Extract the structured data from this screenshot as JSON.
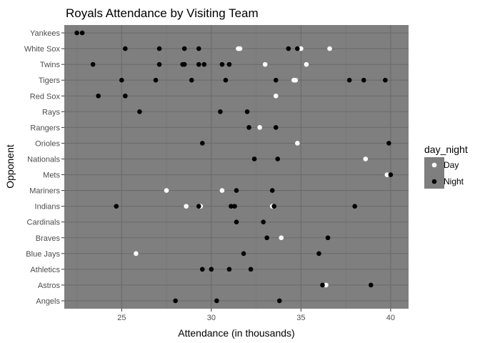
{
  "chart_data": {
    "type": "scatter",
    "title": "Royals Attendance by Visiting Team",
    "xlabel": "Attendance (in thousands)",
    "ylabel": "Opponent",
    "xlim": [
      21.8,
      41
    ],
    "x_ticks": [
      25,
      30,
      35,
      40
    ],
    "categories": [
      "Angels",
      "Astros",
      "Athletics",
      "Blue Jays",
      "Braves",
      "Cardinals",
      "Indians",
      "Mariners",
      "Mets",
      "Nationals",
      "Orioles",
      "Rangers",
      "Rays",
      "Red Sox",
      "Tigers",
      "Twins",
      "White Sox",
      "Yankees"
    ],
    "legend": {
      "title": "day_night",
      "position": "right",
      "entries": [
        {
          "name": "Day",
          "color": "#ffffff"
        },
        {
          "name": "Night",
          "color": "#000000"
        }
      ]
    },
    "series": [
      {
        "name": "Day",
        "points": [
          {
            "x": 36.4,
            "y": "Astros"
          },
          {
            "x": 39.8,
            "y": "Mets"
          },
          {
            "x": 38.6,
            "y": "Nationals"
          },
          {
            "x": 34.8,
            "y": "Orioles"
          },
          {
            "x": 32.7,
            "y": "Rangers"
          },
          {
            "x": 33.6,
            "y": "Red Sox"
          },
          {
            "x": 34.6,
            "y": "Tigers"
          },
          {
            "x": 34.7,
            "y": "Tigers"
          },
          {
            "x": 33.0,
            "y": "Twins"
          },
          {
            "x": 35.3,
            "y": "Twins"
          },
          {
            "x": 31.5,
            "y": "White Sox"
          },
          {
            "x": 31.6,
            "y": "White Sox"
          },
          {
            "x": 35.0,
            "y": "White Sox"
          },
          {
            "x": 36.6,
            "y": "White Sox"
          },
          {
            "x": 25.8,
            "y": "Blue Jays"
          },
          {
            "x": 33.9,
            "y": "Braves"
          },
          {
            "x": 28.6,
            "y": "Indians"
          },
          {
            "x": 29.4,
            "y": "Indians"
          },
          {
            "x": 33.4,
            "y": "Indians"
          },
          {
            "x": 27.5,
            "y": "Mariners"
          },
          {
            "x": 30.6,
            "y": "Mariners"
          }
        ]
      },
      {
        "name": "Night",
        "points": [
          {
            "x": 28.0,
            "y": "Angels"
          },
          {
            "x": 30.3,
            "y": "Angels"
          },
          {
            "x": 33.8,
            "y": "Angels"
          },
          {
            "x": 36.2,
            "y": "Astros"
          },
          {
            "x": 38.9,
            "y": "Astros"
          },
          {
            "x": 29.5,
            "y": "Athletics"
          },
          {
            "x": 30.0,
            "y": "Athletics"
          },
          {
            "x": 31.0,
            "y": "Athletics"
          },
          {
            "x": 32.2,
            "y": "Athletics"
          },
          {
            "x": 31.8,
            "y": "Blue Jays"
          },
          {
            "x": 36.0,
            "y": "Blue Jays"
          },
          {
            "x": 33.1,
            "y": "Braves"
          },
          {
            "x": 36.5,
            "y": "Braves"
          },
          {
            "x": 31.4,
            "y": "Cardinals"
          },
          {
            "x": 32.9,
            "y": "Cardinals"
          },
          {
            "x": 24.7,
            "y": "Indians"
          },
          {
            "x": 29.3,
            "y": "Indians"
          },
          {
            "x": 31.1,
            "y": "Indians"
          },
          {
            "x": 31.3,
            "y": "Indians"
          },
          {
            "x": 33.5,
            "y": "Indians"
          },
          {
            "x": 38.0,
            "y": "Indians"
          },
          {
            "x": 31.4,
            "y": "Mariners"
          },
          {
            "x": 33.4,
            "y": "Mariners"
          },
          {
            "x": 40.0,
            "y": "Mets"
          },
          {
            "x": 32.4,
            "y": "Nationals"
          },
          {
            "x": 33.7,
            "y": "Nationals"
          },
          {
            "x": 29.5,
            "y": "Orioles"
          },
          {
            "x": 39.9,
            "y": "Orioles"
          },
          {
            "x": 32.1,
            "y": "Rangers"
          },
          {
            "x": 33.6,
            "y": "Rangers"
          },
          {
            "x": 26.0,
            "y": "Rays"
          },
          {
            "x": 30.5,
            "y": "Rays"
          },
          {
            "x": 32.0,
            "y": "Rays"
          },
          {
            "x": 23.7,
            "y": "Red Sox"
          },
          {
            "x": 25.2,
            "y": "Red Sox"
          },
          {
            "x": 25.0,
            "y": "Tigers"
          },
          {
            "x": 26.9,
            "y": "Tigers"
          },
          {
            "x": 28.9,
            "y": "Tigers"
          },
          {
            "x": 30.8,
            "y": "Tigers"
          },
          {
            "x": 33.6,
            "y": "Tigers"
          },
          {
            "x": 37.7,
            "y": "Tigers"
          },
          {
            "x": 38.5,
            "y": "Tigers"
          },
          {
            "x": 39.7,
            "y": "Tigers"
          },
          {
            "x": 23.4,
            "y": "Twins"
          },
          {
            "x": 27.1,
            "y": "Twins"
          },
          {
            "x": 28.4,
            "y": "Twins"
          },
          {
            "x": 28.5,
            "y": "Twins"
          },
          {
            "x": 29.3,
            "y": "Twins"
          },
          {
            "x": 29.6,
            "y": "Twins"
          },
          {
            "x": 30.6,
            "y": "Twins"
          },
          {
            "x": 31.0,
            "y": "Twins"
          },
          {
            "x": 25.2,
            "y": "White Sox"
          },
          {
            "x": 27.1,
            "y": "White Sox"
          },
          {
            "x": 28.5,
            "y": "White Sox"
          },
          {
            "x": 29.3,
            "y": "White Sox"
          },
          {
            "x": 34.3,
            "y": "White Sox"
          },
          {
            "x": 34.8,
            "y": "White Sox"
          },
          {
            "x": 22.5,
            "y": "Yankees"
          },
          {
            "x": 22.8,
            "y": "Yankees"
          }
        ]
      }
    ]
  }
}
